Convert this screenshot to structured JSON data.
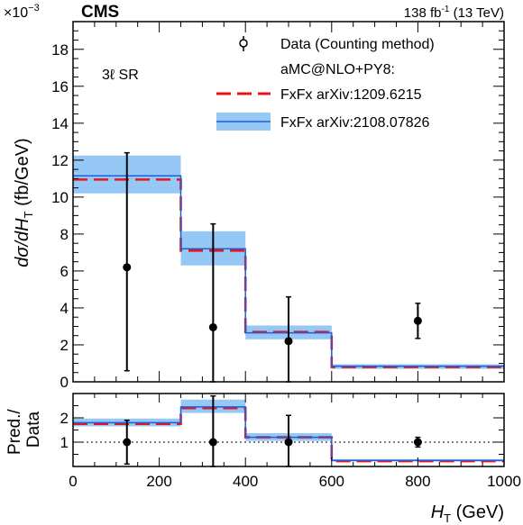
{
  "header": {
    "experiment": "CMS",
    "exponent_base": "×10",
    "exponent": "−3",
    "lumi_value": "138 fb",
    "lumi_exp": "-1",
    "lumi_energy": " (13 TeV)"
  },
  "region_label": "3ℓ  SR",
  "colors": {
    "fxfx_old": "#e8141e",
    "fxfx_new_line": "#1f5fd6",
    "fxfx_new_band": "#96c8f5",
    "data": "#000000"
  },
  "chart_data": [
    {
      "type": "histogram",
      "panel": "main",
      "ylabel": {
        "prefix": "dσ/d",
        "var": "H",
        "sub": "T",
        "unit": " (fb/GeV)"
      },
      "xlim": [
        0,
        1000
      ],
      "ylim": [
        0,
        19.5
      ],
      "y_multiplier": "1e-3",
      "bin_edges": [
        0,
        250,
        400,
        600,
        1000
      ],
      "yticks": [
        0,
        2,
        4,
        6,
        8,
        10,
        12,
        14,
        16,
        18
      ],
      "series": [
        {
          "name": "Data (Counting method)",
          "kind": "points",
          "x": [
            125,
            325,
            500,
            800
          ],
          "y": [
            6.2,
            2.95,
            2.2,
            3.3
          ],
          "yerr_low": [
            5.6,
            2.95,
            2.2,
            0.95
          ],
          "yerr_high": [
            6.2,
            5.6,
            2.4,
            0.95
          ]
        },
        {
          "name": "FxFx arXiv:1209.6215",
          "kind": "step-dashed",
          "values": [
            10.95,
            7.1,
            2.7,
            0.8
          ]
        },
        {
          "name": "FxFx arXiv:2108.07826",
          "kind": "step-band",
          "values": [
            11.15,
            7.2,
            2.65,
            0.85
          ],
          "band_low": [
            10.2,
            6.3,
            2.3,
            0.7
          ],
          "band_high": [
            12.25,
            8.15,
            3.05,
            0.95
          ]
        }
      ],
      "legend": {
        "position": "top-right",
        "generator_header": "aMC@NLO+PY8:"
      }
    },
    {
      "type": "histogram",
      "panel": "ratio",
      "ylabel_line1": "Pred./",
      "ylabel_line2": "Data",
      "xlabel": {
        "var": "H",
        "sub": "T",
        "unit": " (GeV)"
      },
      "xlim": [
        0,
        1000
      ],
      "ylim": [
        0,
        3.0
      ],
      "bin_edges": [
        0,
        250,
        400,
        600,
        1000
      ],
      "xticks": [
        0,
        200,
        400,
        600,
        800,
        1000
      ],
      "yticks": [
        1,
        2
      ],
      "reference_line": 1,
      "series": [
        {
          "name": "Data (Counting method)",
          "kind": "points",
          "x": [
            125,
            325,
            500,
            800
          ],
          "y": [
            1,
            1,
            1,
            1
          ],
          "yerr_low": [
            0.9,
            1.0,
            1.0,
            0.2
          ],
          "yerr_high": [
            0.9,
            1.9,
            1.1,
            0.2
          ]
        },
        {
          "name": "FxFx arXiv:1209.6215",
          "kind": "step-dashed",
          "values": [
            1.75,
            2.4,
            1.2,
            0.22
          ]
        },
        {
          "name": "FxFx arXiv:2108.07826",
          "kind": "step-band",
          "values": [
            1.8,
            2.45,
            1.2,
            0.25
          ],
          "band_low": [
            1.65,
            2.2,
            1.05,
            0.2
          ],
          "band_high": [
            1.97,
            2.75,
            1.37,
            0.3
          ]
        }
      ]
    }
  ]
}
